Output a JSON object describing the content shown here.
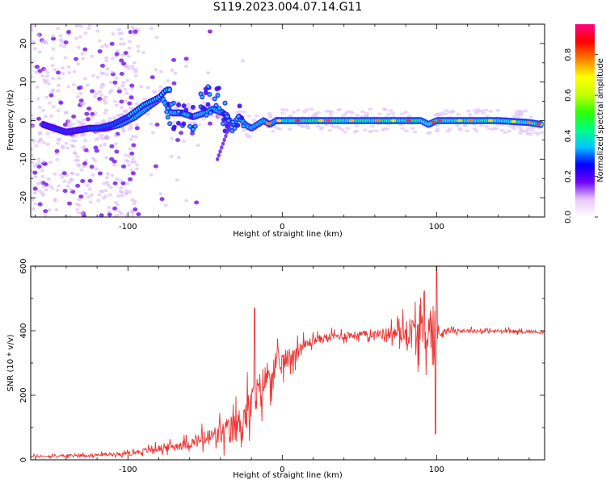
{
  "title": "S119.2023.004.07.14.G11",
  "chart_data": [
    {
      "type": "heatmap",
      "xlabel": "Height of straight line (km)",
      "ylabel": "Frequency (Hz)",
      "xlim": [
        -163,
        170
      ],
      "ylim": [
        -25,
        25
      ],
      "xticks": [
        -100,
        0,
        100
      ],
      "yticks": [
        -20,
        -10,
        0,
        10,
        20
      ],
      "colorbar": {
        "label": "Normalized spectral amplitude",
        "range": [
          0.0,
          0.95
        ],
        "ticks": [
          "0.0",
          "0.2",
          "0.4",
          "0.6",
          "0.8"
        ],
        "colors": [
          "#ffffff",
          "#e8c8f8",
          "#7000ff",
          "#0000ff",
          "#00c8ff",
          "#00ff80",
          "#30ff00",
          "#c8ff00",
          "#ffff00",
          "#ff8000",
          "#ff0000",
          "#ff0080"
        ]
      },
      "ridge": {
        "x": [
          -163,
          -155,
          -140,
          -125,
          -115,
          -105,
          -95,
          -85,
          -78,
          -72,
          -65,
          -58,
          -50,
          -45,
          -38,
          -32,
          -28,
          -24,
          -20,
          -16,
          -12,
          -8,
          -4,
          0,
          10,
          20,
          40,
          60,
          80,
          90,
          95,
          100,
          120,
          140,
          160,
          168
        ],
        "y": [
          -2,
          -1,
          -3,
          -2,
          -2,
          -1,
          1,
          4,
          6,
          2,
          2,
          1,
          2,
          3,
          2,
          -1,
          1,
          -1,
          -2,
          -1,
          0,
          -1,
          0,
          0,
          0,
          0,
          0,
          0,
          0,
          0,
          -1,
          0,
          0,
          0,
          -0.5,
          -1
        ]
      },
      "branch": {
        "x": [
          -120,
          -110,
          -100,
          -90,
          -80,
          -75
        ],
        "y": [
          -2,
          -1,
          1,
          4,
          6,
          8
        ]
      }
    },
    {
      "type": "line",
      "xlabel": "Height of straight line (km)",
      "ylabel": "SNR (10 * v/v)",
      "xlim": [
        -163,
        170
      ],
      "ylim": [
        0,
        600
      ],
      "xticks": [
        -100,
        0,
        100
      ],
      "yticks": [
        0,
        200,
        400,
        600
      ],
      "color": "#ee3333",
      "envelope": {
        "x": [
          -163,
          -140,
          -120,
          -100,
          -80,
          -60,
          -40,
          -30,
          -22,
          -15,
          -10,
          0,
          10,
          20,
          30,
          40,
          60,
          80,
          95,
          100,
          105,
          120,
          140,
          160,
          170
        ],
        "y": [
          10,
          12,
          15,
          20,
          35,
          50,
          80,
          100,
          150,
          210,
          260,
          300,
          340,
          370,
          380,
          385,
          390,
          395,
          395,
          390,
          400,
          400,
          398,
          398,
          395
        ]
      },
      "noise": {
        "x": [
          -163,
          -100,
          -60,
          -40,
          -25,
          -20,
          -10,
          0,
          20,
          60,
          75,
          85,
          95,
          98,
          100,
          102,
          105,
          170
        ],
        "y": [
          8,
          12,
          35,
          80,
          120,
          150,
          110,
          80,
          30,
          25,
          60,
          120,
          140,
          250,
          180,
          60,
          15,
          10
        ]
      }
    }
  ]
}
